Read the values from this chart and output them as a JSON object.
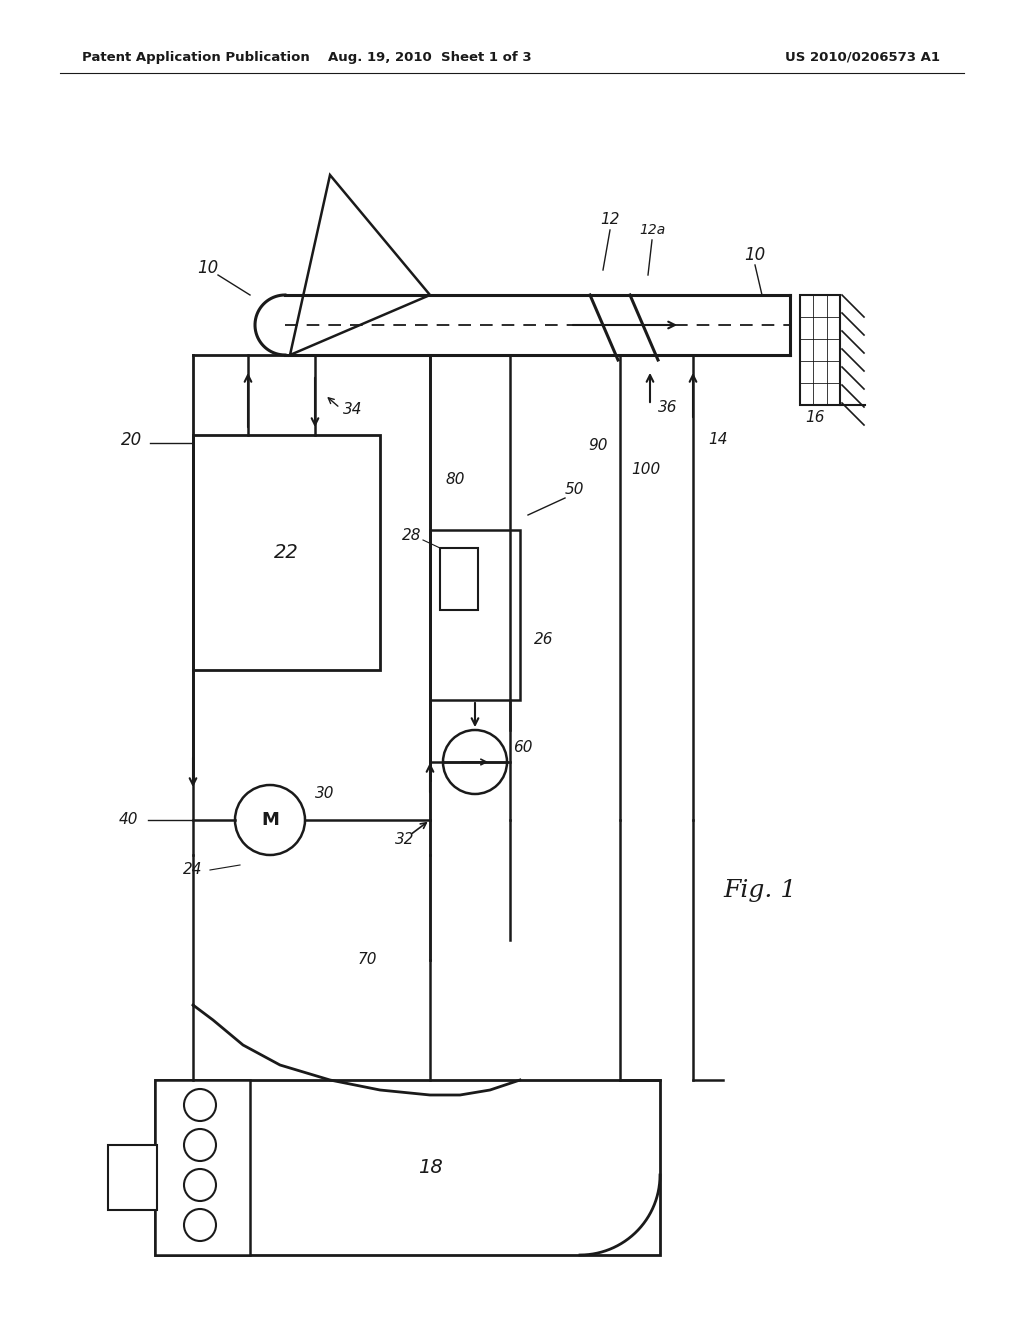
{
  "bg_color": "#ffffff",
  "line_color": "#1a1a1a",
  "header_left": "Patent Application Publication",
  "header_center": "Aug. 19, 2010  Sheet 1 of 3",
  "header_right": "US 2010/0206573 A1",
  "figure_label": "Fig. 1",
  "labels": {
    "10a": "10",
    "10b": "10",
    "12": "12",
    "12a": "12a",
    "14": "14",
    "16": "16",
    "18": "18",
    "20": "20",
    "22": "22",
    "24": "24",
    "26": "26",
    "28": "28",
    "30": "30",
    "32": "32",
    "34": "34",
    "36": "36",
    "40": "40",
    "50": "50",
    "60": "60",
    "70": "70",
    "80": "80",
    "90": "90",
    "100": "100"
  }
}
